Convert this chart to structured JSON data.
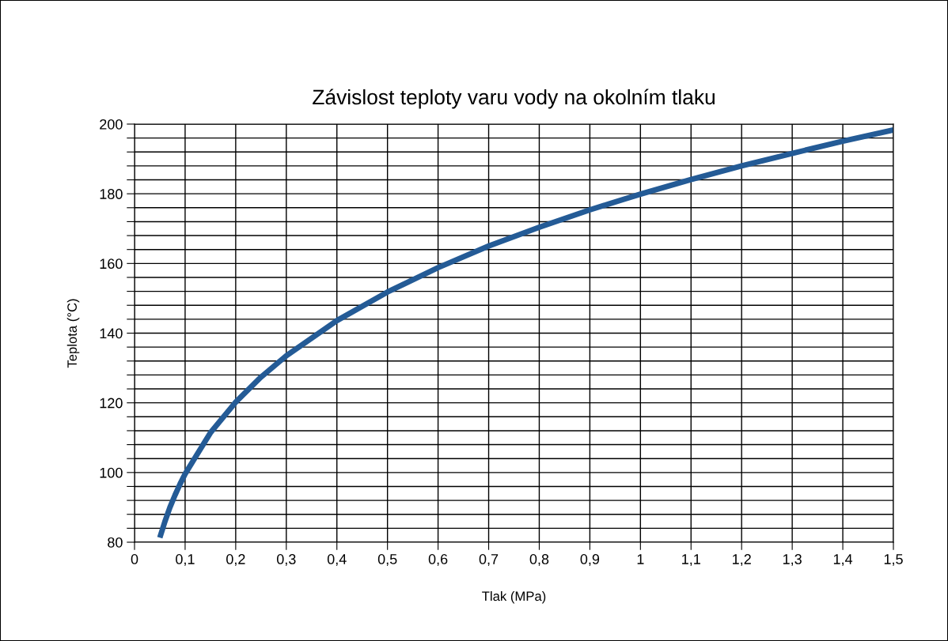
{
  "chart_data": {
    "type": "line",
    "title": "Závislost teploty varu vody na okolním tlaku",
    "xlabel": "Tlak (MPa)",
    "ylabel": "Teplota (°C)",
    "x": [
      0.05,
      0.06,
      0.07,
      0.08,
      0.09,
      0.1,
      0.15,
      0.2,
      0.25,
      0.3,
      0.4,
      0.5,
      0.6,
      0.7,
      0.8,
      0.9,
      1.0,
      1.1,
      1.2,
      1.3,
      1.4,
      1.5
    ],
    "series": [
      {
        "color": "#245b96",
        "values": [
          81.3,
          85.9,
          90.0,
          93.5,
          96.7,
          99.6,
          111.4,
          120.2,
          127.4,
          133.5,
          143.6,
          151.8,
          158.8,
          165.0,
          170.4,
          175.4,
          179.9,
          184.1,
          188.0,
          191.6,
          195.1,
          198.3
        ]
      }
    ],
    "xlim": [
      0,
      1.5
    ],
    "ylim": [
      80,
      200
    ],
    "xticks": [
      0,
      {
        "value": 0.1,
        "label": "0,1"
      },
      {
        "value": 0.2,
        "label": "0,2"
      },
      {
        "value": 0.3,
        "label": "0,3"
      },
      {
        "value": 0.4,
        "label": "0,4"
      },
      {
        "value": 0.5,
        "label": "0,5"
      },
      {
        "value": 0.6,
        "label": "0,6"
      },
      {
        "value": 0.7,
        "label": "0,7"
      },
      {
        "value": 0.8,
        "label": "0,8"
      },
      {
        "value": 0.9,
        "label": "0,9"
      },
      1,
      {
        "value": 1.1,
        "label": "1,1"
      },
      {
        "value": 1.2,
        "label": "1,2"
      },
      {
        "value": 1.3,
        "label": "1,3"
      },
      {
        "value": 1.4,
        "label": "1,4"
      },
      {
        "value": 1.5,
        "label": "1,5"
      }
    ],
    "yticks": [
      80,
      {
        "value": 84,
        "label": null
      },
      {
        "value": 88,
        "label": null
      },
      {
        "value": 92,
        "label": null
      },
      {
        "value": 96,
        "label": null
      },
      100,
      {
        "value": 104,
        "label": null
      },
      {
        "value": 108,
        "label": null
      },
      {
        "value": 112,
        "label": null
      },
      {
        "value": 116,
        "label": null
      },
      120,
      {
        "value": 124,
        "label": null
      },
      {
        "value": 128,
        "label": null
      },
      {
        "value": 132,
        "label": null
      },
      {
        "value": 136,
        "label": null
      },
      140,
      {
        "value": 144,
        "label": null
      },
      {
        "value": 148,
        "label": null
      },
      {
        "value": 152,
        "label": null
      },
      {
        "value": 156,
        "label": null
      },
      160,
      {
        "value": 164,
        "label": null
      },
      {
        "value": 168,
        "label": null
      },
      {
        "value": 172,
        "label": null
      },
      {
        "value": 176,
        "label": null
      },
      180,
      {
        "value": 184,
        "label": null
      },
      {
        "value": 188,
        "label": null
      },
      {
        "value": 192,
        "label": null
      },
      {
        "value": 196,
        "label": null
      },
      200
    ],
    "grid": true,
    "marker": "none",
    "line_style": "solid"
  }
}
